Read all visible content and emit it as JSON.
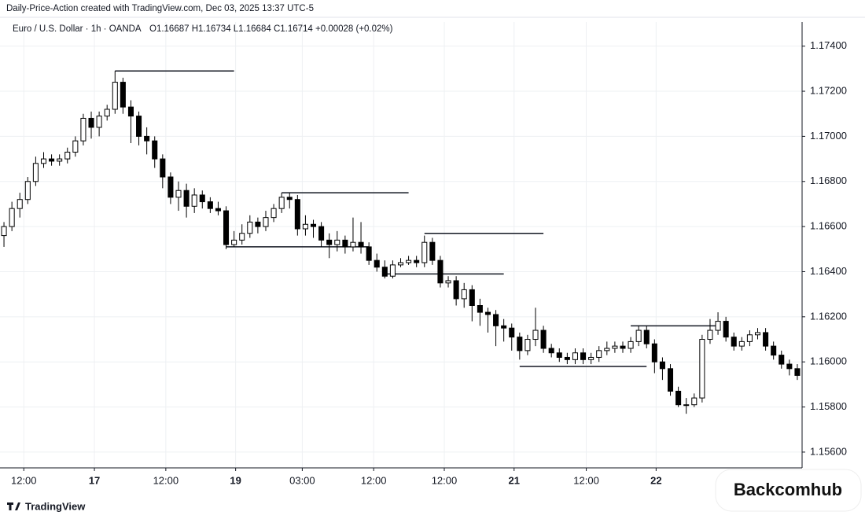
{
  "header": {
    "title": "Daily-Price-Action created with TradingView.com, Dec 03, 2025 13:37 UTC-5"
  },
  "footer": {
    "brand": "TradingView",
    "watermark": "Backcomhub"
  },
  "chart_data": {
    "type": "candlestick",
    "symbol": "Euro / U.S. Dollar · 1h · OANDA",
    "ohlc_summary": "O1.16687 H1.16734 L1.16684 C1.16714 +0.00028 (+0.02%)",
    "up_color": "#ffffff",
    "down_color": "#000000",
    "outline_color": "#000000",
    "grid": true,
    "ylim": [
      1.1553,
      1.175
    ],
    "yticks": [
      {
        "value": 1.174,
        "label": "1.17400"
      },
      {
        "value": 1.172,
        "label": "1.17200"
      },
      {
        "value": 1.17,
        "label": "1.17000"
      },
      {
        "value": 1.168,
        "label": "1.16800"
      },
      {
        "value": 1.166,
        "label": "1.16600"
      },
      {
        "value": 1.164,
        "label": "1.16400"
      },
      {
        "value": 1.162,
        "label": "1.16200"
      },
      {
        "value": 1.16,
        "label": "1.16000"
      },
      {
        "value": 1.158,
        "label": "1.15800"
      },
      {
        "value": 1.156,
        "label": "1.15600"
      }
    ],
    "xlim": [
      -0.5,
      100.6
    ],
    "xticks": [
      {
        "value": 2.5,
        "label": "12:00"
      },
      {
        "value": 11.4,
        "label": "17"
      },
      {
        "value": 20.4,
        "label": "12:00"
      },
      {
        "value": 29.2,
        "label": "19"
      },
      {
        "value": 37.6,
        "label": "03:00"
      },
      {
        "value": 46.6,
        "label": "12:00"
      },
      {
        "value": 55.5,
        "label": "12:00"
      },
      {
        "value": 64.3,
        "label": "21"
      },
      {
        "value": 73.4,
        "label": "12:00"
      },
      {
        "value": 82.2,
        "label": "22"
      }
    ],
    "open": [
      1.1656,
      1.166,
      1.1668,
      1.1672,
      1.168,
      1.1688,
      1.169,
      1.1689,
      1.169,
      1.1693,
      1.1698,
      1.1708,
      1.1704,
      1.1709,
      1.1712,
      1.1724,
      1.1713,
      1.1709,
      1.17,
      1.1698,
      1.169,
      1.1682,
      1.1673,
      1.1676,
      1.1669,
      1.1674,
      1.1671,
      1.1668,
      1.1667,
      1.1652,
      1.1654,
      1.1657,
      1.1662,
      1.166,
      1.1664,
      1.1668,
      1.1673,
      1.1672,
      1.1659,
      1.1661,
      1.166,
      1.1654,
      1.1652,
      1.1654,
      1.1651,
      1.1653,
      1.1651,
      1.1645,
      1.1642,
      1.1638,
      1.1643,
      1.1644,
      1.1645,
      1.1644,
      1.1653,
      1.1645,
      1.1635,
      1.1636,
      1.1628,
      1.1632,
      1.1625,
      1.1622,
      1.1621,
      1.1616,
      1.1615,
      1.1611,
      1.1605,
      1.161,
      1.1614,
      1.1606,
      1.1604,
      1.1602,
      1.1601,
      1.1604,
      1.1601,
      1.1602,
      1.1605,
      1.1606,
      1.1607,
      1.1606,
      1.1609,
      1.1614,
      1.1608,
      1.16,
      1.1597,
      1.1587,
      1.1581,
      1.1581,
      1.1584,
      1.161,
      1.1614,
      1.1618,
      1.1611,
      1.1607,
      1.1609,
      1.1612,
      1.1613,
      1.1607,
      1.1603,
      1.1599,
      1.1597
    ],
    "high": [
      1.1662,
      1.1671,
      1.1675,
      1.1682,
      1.1691,
      1.1693,
      1.1692,
      1.1692,
      1.1695,
      1.17,
      1.171,
      1.1711,
      1.1711,
      1.1714,
      1.1729,
      1.1726,
      1.1716,
      1.1711,
      1.1704,
      1.17,
      1.1692,
      1.1684,
      1.168,
      1.1679,
      1.1677,
      1.1676,
      1.1673,
      1.1671,
      1.1669,
      1.1658,
      1.1661,
      1.1665,
      1.1664,
      1.1667,
      1.167,
      1.1675,
      1.1675,
      1.1674,
      1.1665,
      1.1663,
      1.1662,
      1.1657,
      1.1658,
      1.1656,
      1.1664,
      1.1662,
      1.1653,
      1.1648,
      1.1645,
      1.1645,
      1.1646,
      1.1647,
      1.1647,
      1.1656,
      1.1655,
      1.1647,
      1.1638,
      1.1638,
      1.1635,
      1.1634,
      1.1628,
      1.1624,
      1.1623,
      1.1619,
      1.1617,
      1.1613,
      1.1612,
      1.1624,
      1.1616,
      1.1608,
      1.1606,
      1.1604,
      1.1606,
      1.1606,
      1.1604,
      1.1607,
      1.1609,
      1.1609,
      1.1609,
      1.1611,
      1.1616,
      1.1616,
      1.161,
      1.1602,
      1.1599,
      1.1589,
      1.1584,
      1.1586,
      1.1612,
      1.1619,
      1.1622,
      1.162,
      1.1613,
      1.1611,
      1.1614,
      1.1615,
      1.1615,
      1.1609,
      1.1605,
      1.1601,
      1.1599
    ],
    "low": [
      1.1651,
      1.1658,
      1.1664,
      1.167,
      1.1678,
      1.1686,
      1.1687,
      1.1687,
      1.1688,
      1.1691,
      1.1696,
      1.1699,
      1.17,
      1.1707,
      1.171,
      1.171,
      1.1697,
      1.1696,
      1.1692,
      1.1686,
      1.1677,
      1.167,
      1.1667,
      1.1664,
      1.1666,
      1.1668,
      1.1666,
      1.1665,
      1.165,
      1.1651,
      1.1652,
      1.1655,
      1.1657,
      1.1658,
      1.1662,
      1.1666,
      1.1668,
      1.1656,
      1.1656,
      1.1655,
      1.1651,
      1.1646,
      1.1649,
      1.1648,
      1.1649,
      1.1648,
      1.1643,
      1.164,
      1.1637,
      1.1637,
      1.1642,
      1.1643,
      1.1642,
      1.1642,
      1.1643,
      1.1633,
      1.1633,
      1.1625,
      1.1624,
      1.1618,
      1.1616,
      1.1613,
      1.1607,
      1.1609,
      1.1605,
      1.1601,
      1.1603,
      1.1607,
      1.1604,
      1.1602,
      1.16,
      1.1599,
      1.1599,
      1.1599,
      1.1599,
      1.16,
      1.1603,
      1.1604,
      1.1604,
      1.1604,
      1.1607,
      1.1606,
      1.1595,
      1.1592,
      1.1585,
      1.158,
      1.1577,
      1.158,
      1.1582,
      1.1608,
      1.1612,
      1.1609,
      1.1605,
      1.1605,
      1.1607,
      1.161,
      1.1605,
      1.1601,
      1.1597,
      1.1594,
      1.1592
    ],
    "close": [
      1.166,
      1.1668,
      1.1672,
      1.168,
      1.1688,
      1.169,
      1.1689,
      1.169,
      1.1693,
      1.1698,
      1.1708,
      1.1704,
      1.1709,
      1.1712,
      1.1724,
      1.1713,
      1.1709,
      1.17,
      1.1698,
      1.169,
      1.1682,
      1.1673,
      1.1676,
      1.1669,
      1.1674,
      1.1671,
      1.1668,
      1.1667,
      1.1652,
      1.1654,
      1.1657,
      1.1662,
      1.166,
      1.1664,
      1.1668,
      1.1673,
      1.1672,
      1.1659,
      1.1661,
      1.166,
      1.1654,
      1.1652,
      1.1654,
      1.1651,
      1.1653,
      1.1651,
      1.1645,
      1.1642,
      1.1638,
      1.1643,
      1.1644,
      1.1645,
      1.1644,
      1.1653,
      1.1645,
      1.1635,
      1.1636,
      1.1628,
      1.1632,
      1.1625,
      1.1622,
      1.1621,
      1.1616,
      1.1615,
      1.1611,
      1.1605,
      1.161,
      1.1614,
      1.1606,
      1.1604,
      1.1602,
      1.1601,
      1.1604,
      1.1601,
      1.1602,
      1.1605,
      1.1606,
      1.1607,
      1.1606,
      1.1609,
      1.1614,
      1.1608,
      1.16,
      1.1597,
      1.1587,
      1.1581,
      1.1581,
      1.1584,
      1.161,
      1.1614,
      1.1618,
      1.1611,
      1.1607,
      1.1609,
      1.1612,
      1.1613,
      1.1607,
      1.1603,
      1.1599,
      1.1597,
      1.1594
    ],
    "levels": [
      {
        "price": 1.1729,
        "from": 14,
        "to": 29
      },
      {
        "price": 1.1675,
        "from": 35,
        "to": 51
      },
      {
        "price": 1.1651,
        "from": 28,
        "to": 46
      },
      {
        "price": 1.1657,
        "from": 53,
        "to": 68
      },
      {
        "price": 1.1639,
        "from": 48,
        "to": 63
      },
      {
        "price": 1.1616,
        "from": 79,
        "to": 90
      },
      {
        "price": 1.1598,
        "from": 65,
        "to": 81
      }
    ]
  }
}
